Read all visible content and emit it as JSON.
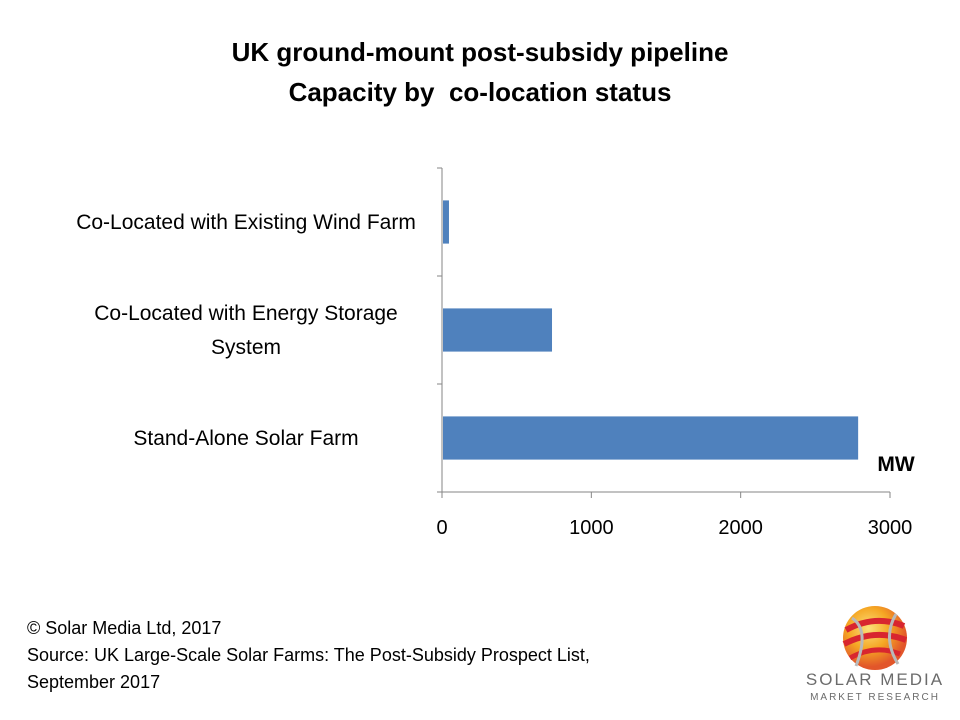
{
  "chart_data": {
    "type": "bar",
    "orientation": "horizontal",
    "title": "UK ground-mount post-subsidy pipeline",
    "subtitle": "Capacity by  co-location status",
    "categories": [
      [
        "Stand-Alone Solar Farm"
      ],
      [
        "Co-Located with Energy Storage",
        "System"
      ],
      [
        "Co-Located with Existing Wind Farm"
      ]
    ],
    "values": [
      2780,
      730,
      40
    ],
    "xlabel": "MW",
    "xlim": [
      0,
      3000
    ],
    "xticks": [
      "0",
      "1000",
      "2000",
      "3000"
    ],
    "bar_color": "#4f81bd",
    "grid": false,
    "legend": "none"
  },
  "footer": {
    "copyright": "© Solar Media Ltd, 2017",
    "source_line1": "Source: UK Large-Scale Solar Farms: The Post-Subsidy Prospect List,",
    "source_line2": "September 2017"
  },
  "logo": {
    "text_main": "SOLAR MEDIA",
    "text_sub": "MARKET RESEARCH"
  }
}
